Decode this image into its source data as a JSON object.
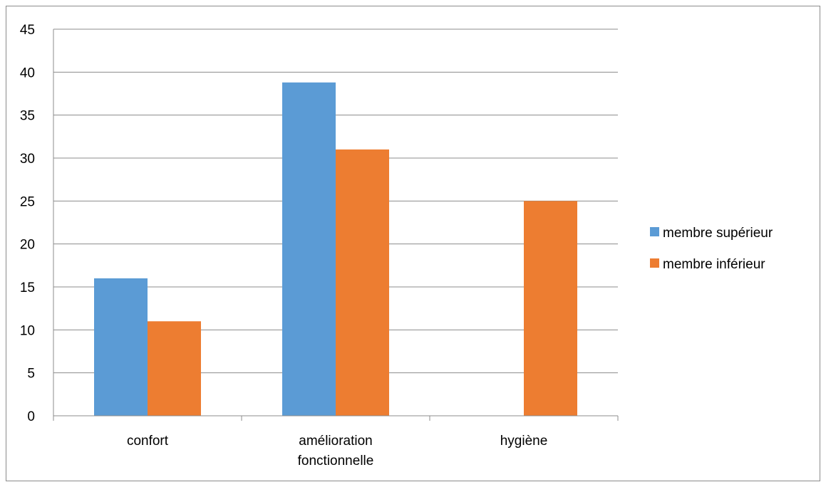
{
  "chart_data": {
    "type": "bar",
    "title": "",
    "xlabel": "",
    "ylabel": "",
    "categories": [
      [
        "confort"
      ],
      [
        "amélioration",
        "fonctionnelle"
      ],
      [
        "hygiène"
      ]
    ],
    "series": [
      {
        "name": "membre supérieur",
        "color": "#5b9bd5",
        "values": [
          16,
          38.8,
          0
        ]
      },
      {
        "name": "membre inférieur",
        "color": "#ed7d31",
        "values": [
          11,
          31,
          25
        ]
      }
    ],
    "ylim": [
      0,
      45
    ],
    "yticks": [
      0,
      5,
      10,
      15,
      20,
      25,
      30,
      35,
      40,
      45
    ],
    "grid": true,
    "legend": "right",
    "gridColor": "#8c8c8c"
  }
}
